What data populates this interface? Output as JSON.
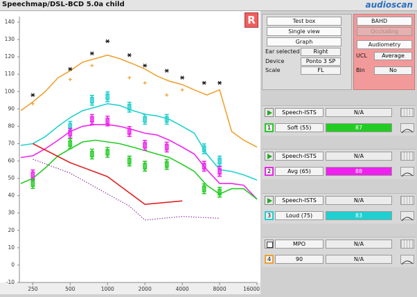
{
  "window_title": "Speechmap/DSL-BCD 5.0a child",
  "logo": "audioscan",
  "ear_badge": "R",
  "chart_data": {
    "type": "line",
    "x_scale": "log",
    "xlim": [
      200,
      16000
    ],
    "ylim": [
      -10,
      140
    ],
    "xticks": [
      250,
      500,
      1000,
      2000,
      4000,
      8000,
      16000
    ],
    "yticks": [
      -10,
      0,
      10,
      20,
      30,
      40,
      50,
      60,
      70,
      80,
      90,
      100,
      110,
      120,
      130,
      140
    ],
    "grid": false,
    "series": [
      {
        "style": "line",
        "color": "#f0a030",
        "x": [
          200,
          250,
          315,
          400,
          500,
          630,
          800,
          1000,
          1250,
          1600,
          2000,
          2500,
          3150,
          4000,
          5000,
          6300,
          8000,
          10000,
          12500,
          16000
        ],
        "values": [
          89,
          94,
          100,
          108,
          112,
          117,
          119,
          121,
          119,
          116,
          113,
          109,
          106,
          104,
          101,
          98,
          101,
          77,
          72,
          68
        ]
      },
      {
        "style": "line",
        "color": "#20d0d0",
        "x": [
          200,
          250,
          315,
          400,
          500,
          630,
          800,
          1000,
          1250,
          1600,
          2000,
          2500,
          3150,
          4000,
          5000,
          6300,
          8000,
          10000,
          12500,
          16000
        ],
        "values": [
          69,
          70,
          74,
          80,
          85,
          89,
          91,
          93,
          92,
          89,
          87,
          86,
          84,
          80,
          76,
          64,
          55,
          54,
          52,
          49
        ]
      },
      {
        "style": "line",
        "color": "#ee22ee",
        "x": [
          200,
          250,
          315,
          400,
          500,
          630,
          800,
          1000,
          1250,
          1600,
          2000,
          2500,
          3150,
          4000,
          5000,
          6300,
          8000,
          10000,
          12500,
          16000
        ],
        "values": [
          62,
          63,
          67,
          72,
          77,
          80,
          81,
          81,
          80,
          78,
          76,
          75,
          72,
          68,
          64,
          55,
          47,
          47,
          46,
          38
        ]
      },
      {
        "style": "line",
        "color": "#22cc22",
        "x": [
          200,
          250,
          315,
          400,
          500,
          630,
          800,
          1000,
          1250,
          1600,
          2000,
          2500,
          3150,
          4000,
          5000,
          6300,
          8000,
          10000,
          12500,
          16000
        ],
        "values": [
          47,
          50,
          56,
          63,
          67,
          71,
          72,
          71,
          70,
          68,
          66,
          64,
          62,
          58,
          54,
          46,
          41,
          44,
          44,
          38
        ]
      },
      {
        "style": "line",
        "color": "#e02020",
        "x": [
          250,
          500,
          1000,
          2000,
          4000
        ],
        "values": [
          70,
          59,
          51,
          35,
          37
        ]
      },
      {
        "style": "dotted",
        "color": "#9030a0",
        "x": [
          250,
          500,
          1000,
          1500,
          2000,
          4000,
          8000
        ],
        "values": [
          61,
          53,
          41,
          34,
          26,
          28,
          27
        ]
      },
      {
        "style": "asterisk",
        "color": "#111111",
        "x": [
          250,
          500,
          750,
          1000,
          1500,
          2000,
          3000,
          4000,
          6000,
          8000
        ],
        "values": [
          98,
          113,
          122,
          129,
          121,
          115,
          112,
          108,
          105,
          105
        ]
      },
      {
        "style": "cross",
        "color": "#f0a030",
        "x": [
          250,
          500,
          750,
          1500,
          2000,
          3000,
          4000
        ],
        "values": [
          93,
          107,
          115,
          108,
          105,
          98,
          101
        ]
      },
      {
        "style": "target",
        "color": "#20d0d0",
        "x": [
          500,
          750,
          1000,
          1500,
          2000,
          3000,
          6000,
          8000
        ],
        "values": [
          80,
          95,
          97,
          91,
          84,
          84,
          67,
          60
        ]
      },
      {
        "style": "target",
        "color": "#ee22ee",
        "x": [
          250,
          500,
          750,
          1000,
          1500,
          2000,
          3000,
          6000,
          8000
        ],
        "values": [
          52,
          76,
          84,
          83,
          77,
          69,
          68,
          57,
          54
        ]
      },
      {
        "style": "target",
        "color": "#22cc22",
        "x": [
          250,
          500,
          750,
          1000,
          1500,
          2000,
          3000,
          6000,
          8000
        ],
        "values": [
          47,
          70,
          64,
          65,
          60,
          57,
          58,
          44,
          42
        ]
      }
    ]
  },
  "controls": {
    "test_box": "Test box",
    "single_view": "Single view",
    "graph": "Graph",
    "ear_selected": {
      "label": "Ear selected",
      "value": "Right"
    },
    "device": {
      "label": "Device",
      "value": "Ponto 3 SP"
    },
    "scale": {
      "label": "Scale",
      "value": "FL"
    }
  },
  "settings": {
    "transducer": "BAHD",
    "occluding": "Occluding",
    "audiometry": "Audiometry",
    "ucl": {
      "label": "UCL",
      "value": "Average"
    },
    "bin": {
      "label": "Bin",
      "value": "No"
    }
  },
  "tests": [
    {
      "stimulus": "Speech-ISTS",
      "result": "N/A",
      "number": "1",
      "level": "Soft (55)",
      "sii": "87",
      "color": "#22cc22"
    },
    {
      "stimulus": "Speech-ISTS",
      "result": "N/A",
      "number": "2",
      "level": "Avg (65)",
      "sii": "88",
      "color": "#ee22ee"
    },
    {
      "stimulus": "Speech-ISTS",
      "result": "N/A",
      "number": "3",
      "level": "Loud (75)",
      "sii": "83",
      "color": "#20d0d0"
    },
    {
      "stimulus": "MPO",
      "result": "N/A",
      "number": "4",
      "level": "90",
      "sii": "N/A",
      "color": "#f0a030"
    }
  ]
}
